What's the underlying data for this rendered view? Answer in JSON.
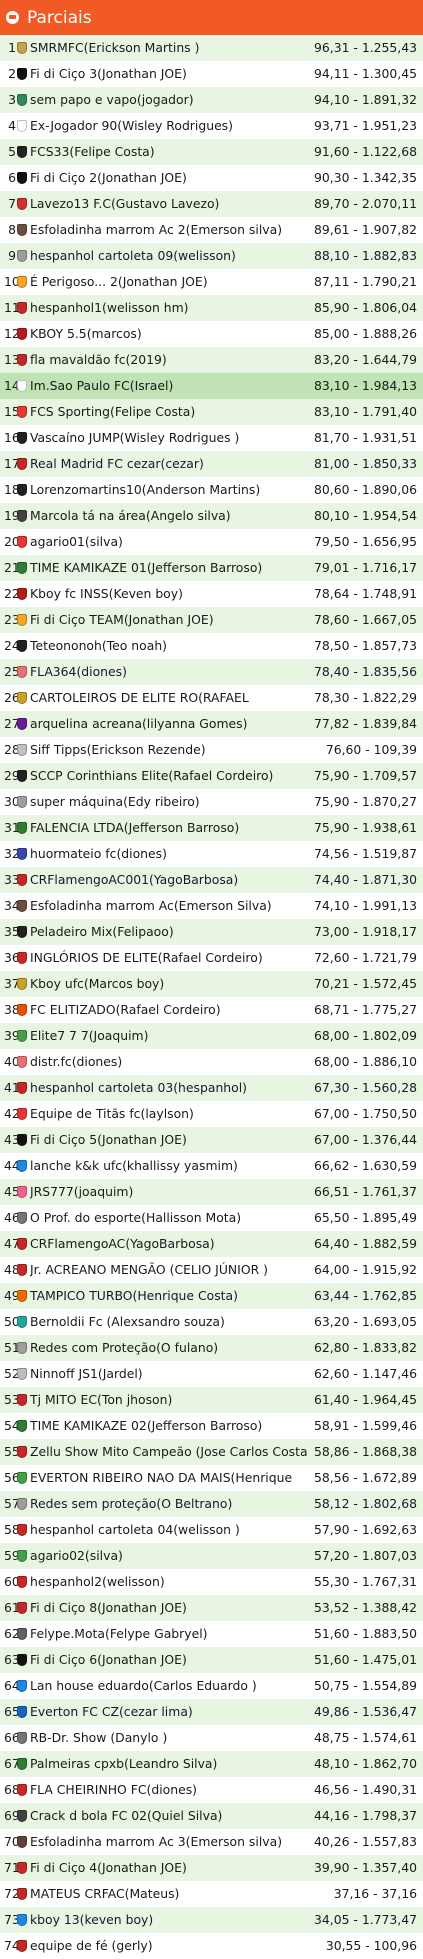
{
  "header": {
    "title": "Parciais",
    "icon": "trophy-icon"
  },
  "rows": [
    {
      "pos": "1",
      "name": "SMRMFC(Erickson Martins )",
      "score": "96,31 - 1.255,43",
      "color": "#c7a14b"
    },
    {
      "pos": "2",
      "name": "Fi di Ciço 3(Jonathan JOE)",
      "score": "94,11 - 1.300,45",
      "color": "#111111"
    },
    {
      "pos": "3",
      "name": "sem papo e vapo(jogador)",
      "score": "94,10 - 1.891,32",
      "color": "#2e8b57"
    },
    {
      "pos": "4",
      "name": "Ex-Jogador 90(Wisley Rodrigues)",
      "score": "93,71 - 1.951,23",
      "color": "#ffffff"
    },
    {
      "pos": "5",
      "name": "FCS33(Felipe Costa)",
      "score": "91,60 - 1.122,68",
      "color": "#222222"
    },
    {
      "pos": "6",
      "name": "Fi di Ciço 2(Jonathan JOE)",
      "score": "90,30 - 1.342,35",
      "color": "#111111"
    },
    {
      "pos": "7",
      "name": "Lavezo13 F.C(Gustavo Lavezo)",
      "score": "89,70 - 2.070,11",
      "color": "#d32f2f"
    },
    {
      "pos": "8",
      "name": "Esfoladinha marrom Ac 2(Emerson silva)",
      "score": "89,61 - 1.907,82",
      "color": "#6d4c41"
    },
    {
      "pos": "9",
      "name": "hespanhol cartoleta 09(welisson)",
      "score": "88,10 - 1.882,83",
      "color": "#9e9e9e"
    },
    {
      "pos": "10",
      "name": "É Perigoso... 2(Jonathan JOE)",
      "score": "87,11 - 1.790,21",
      "color": "#f5a623"
    },
    {
      "pos": "11",
      "name": "hespanhol1(welisson hm)",
      "score": "85,90 - 1.806,04",
      "color": "#c62828"
    },
    {
      "pos": "12",
      "name": "KBOY 5.5(marcos)",
      "score": "85,00 - 1.888,26",
      "color": "#b71c1c"
    },
    {
      "pos": "13",
      "name": "fla mavaldão fc(2019)",
      "score": "83,20 - 1.644,79",
      "color": "#c62828"
    },
    {
      "pos": "14",
      "name": "Im.Sao Paulo FC(Israel)",
      "score": "83,10 - 1.984,13",
      "color": "#ffffff"
    },
    {
      "pos": "15",
      "name": "FCS Sporting(Felipe Costa)",
      "score": "83,10 - 1.791,40",
      "color": "#e53935"
    },
    {
      "pos": "16",
      "name": "Vascaíno JUMP(Wisley Rodrigues )",
      "score": "81,70 - 1.931,51",
      "color": "#212121"
    },
    {
      "pos": "17",
      "name": "Real Madrid FC cezar(cezar)",
      "score": "81,00 - 1.850,33",
      "color": "#c62828"
    },
    {
      "pos": "18",
      "name": "Lorenzomartins10(Anderson Martins)",
      "score": "80,60 - 1.890,06",
      "color": "#212121"
    },
    {
      "pos": "19",
      "name": "Marcola tá na área(Angelo silva)",
      "score": "80,10 - 1.954,54",
      "color": "#424242"
    },
    {
      "pos": "20",
      "name": "agario01(silva)",
      "score": "79,50 - 1.656,95",
      "color": "#e53935"
    },
    {
      "pos": "21",
      "name": "TIME KAMIKAZE 01(Jefferson Barroso)",
      "score": "79,01 - 1.716,17",
      "color": "#2e7d32"
    },
    {
      "pos": "22",
      "name": "Kboy fc INSS(Keven boy)",
      "score": "78,64 - 1.748,91",
      "color": "#b71c1c"
    },
    {
      "pos": "23",
      "name": "Fi di Ciço TEAM(Jonathan JOE)",
      "score": "78,60 - 1.667,05",
      "color": "#f5a623"
    },
    {
      "pos": "24",
      "name": "Teteononoh(Teo noah)",
      "score": "78,50 - 1.857,73",
      "color": "#212121"
    },
    {
      "pos": "25",
      "name": "FLA364(diones)",
      "score": "78,40 - 1.835,56",
      "color": "#e57373"
    },
    {
      "pos": "26",
      "name": "CARTOLEIROS DE ELITE RO(RAFAEL",
      "score": "78,30 - 1.822,29",
      "color": "#c9a227"
    },
    {
      "pos": "27",
      "name": "arquelina acreana(lilyanna Gomes)",
      "score": "77,82 - 1.839,84",
      "color": "#6a1b9a"
    },
    {
      "pos": "28",
      "name": "Siff Tipps(Erickson Rezende)",
      "score": "76,60 - 109,39",
      "color": "#c0c0c0"
    },
    {
      "pos": "29",
      "name": "SCCP Corinthians Elite(Rafael Cordeiro)",
      "score": "75,90 - 1.709,57",
      "color": "#212121"
    },
    {
      "pos": "30",
      "name": "super máquina(Edy ribeiro)",
      "score": "75,90 - 1.870,27",
      "color": "#9e9e9e"
    },
    {
      "pos": "31",
      "name": "FALENCIA LTDA(Jefferson Barroso)",
      "score": "75,90 - 1.938,61",
      "color": "#2e7d32"
    },
    {
      "pos": "32",
      "name": "huormateio fc(diones)",
      "score": "74,56 - 1.519,87",
      "color": "#3949ab"
    },
    {
      "pos": "33",
      "name": "CRFlamengoAC001(YagoBarbosa)",
      "score": "74,40 - 1.871,30",
      "color": "#c62828"
    },
    {
      "pos": "34",
      "name": "Esfoladinha marrom Ac(Emerson Silva)",
      "score": "74,10 - 1.991,13",
      "color": "#6d4c41"
    },
    {
      "pos": "35",
      "name": "Peladeiro Mix(Felipaoo)",
      "score": "73,00 - 1.918,17",
      "color": "#212121"
    },
    {
      "pos": "36",
      "name": "INGLÓRIOS DE ELITE(Rafael Cordeiro)",
      "score": "72,60 - 1.721,79",
      "color": "#c62828"
    },
    {
      "pos": "37",
      "name": "Kboy ufc(Marcos boy)",
      "score": "70,21 - 1.572,45",
      "color": "#c9a227"
    },
    {
      "pos": "38",
      "name": "FC ELITIZADO(Rafael Cordeiro)",
      "score": "68,71 - 1.775,27",
      "color": "#e65100"
    },
    {
      "pos": "39",
      "name": "Elite7 7 7(Joaquim)",
      "score": "68,00 - 1.802,09",
      "color": "#43a047"
    },
    {
      "pos": "40",
      "name": "distr.fc(diones)",
      "score": "68,00 - 1.886,10",
      "color": "#e57373"
    },
    {
      "pos": "41",
      "name": "hespanhol cartoleta 03(hespanhol)",
      "score": "67,30 - 1.560,28",
      "color": "#c62828"
    },
    {
      "pos": "42",
      "name": "Equipe de Titãs fc(laylson)",
      "score": "67,00 - 1.750,50",
      "color": "#e53935"
    },
    {
      "pos": "43",
      "name": "Fi di Ciço 5(Jonathan JOE)",
      "score": "67,00 - 1.376,44",
      "color": "#111111"
    },
    {
      "pos": "44",
      "name": "lanche k&k ufc(khallissy yasmim)",
      "score": "66,62 - 1.630,59",
      "color": "#1e88e5"
    },
    {
      "pos": "45",
      "name": "JRS777(joaquim)",
      "score": "66,51 - 1.761,37",
      "color": "#f06292"
    },
    {
      "pos": "46",
      "name": "O  Prof. do esporte(Hallisson Mota)",
      "score": "65,50 - 1.895,49",
      "color": "#757575"
    },
    {
      "pos": "47",
      "name": "CRFlamengoAC(YagoBarbosa)",
      "score": "64,40 - 1.882,59",
      "color": "#c62828"
    },
    {
      "pos": "48",
      "name": "Jr. ACREANO MENGÃO (CELIO JÚNIOR )",
      "score": "64,00 - 1.915,92",
      "color": "#c62828"
    },
    {
      "pos": "49",
      "name": "TAMPICO TURBO(Henrique Costa)",
      "score": "63,44 - 1.762,85",
      "color": "#ef6c00"
    },
    {
      "pos": "50",
      "name": "Bernoldii Fc (Alexsandro souza)",
      "score": "63,20 - 1.693,05",
      "color": "#26a69a"
    },
    {
      "pos": "51",
      "name": "Redes com Proteção(O fulano)",
      "score": "62,80 - 1.833,82",
      "color": "#9e9e9e"
    },
    {
      "pos": "52",
      "name": "Ninnoff JS1(Jardel)",
      "score": "62,60 - 1.147,46",
      "color": "#bdbdbd"
    },
    {
      "pos": "53",
      "name": "Tj MITO EC(Ton jhoson)",
      "score": "61,40 - 1.964,45",
      "color": "#c62828"
    },
    {
      "pos": "54",
      "name": "TIME KAMIKAZE 02(Jefferson Barroso)",
      "score": "58,91 - 1.599,46",
      "color": "#2e7d32"
    },
    {
      "pos": "55",
      "name": "Zellu Show Mito Campeão (Jose Carlos Costa)",
      "score": "58,86 - 1.868,38",
      "color": "#c62828"
    },
    {
      "pos": "56",
      "name": "EVERTON RIBEIRO NAO DA MAIS(Henrique",
      "score": "58,56 - 1.672,89",
      "color": "#43a047"
    },
    {
      "pos": "57",
      "name": "Redes sem proteção(O Beltrano)",
      "score": "58,12 - 1.802,68",
      "color": "#9e9e9e"
    },
    {
      "pos": "58",
      "name": "hespanhol cartoleta 04(welisson )",
      "score": "57,90 - 1.692,63",
      "color": "#c62828"
    },
    {
      "pos": "59",
      "name": "agario02(silva)",
      "score": "57,20 - 1.807,03",
      "color": "#43a047"
    },
    {
      "pos": "60",
      "name": "hespanhol2(welisson)",
      "score": "55,30 - 1.767,31",
      "color": "#c62828"
    },
    {
      "pos": "61",
      "name": "Fi di Ciço 8(Jonathan JOE)",
      "score": "53,52 - 1.388,42",
      "color": "#c62828"
    },
    {
      "pos": "62",
      "name": "Felype.Mota(Felype Gabryel)",
      "score": "51,60 - 1.883,50",
      "color": "#616161"
    },
    {
      "pos": "63",
      "name": "Fi di Ciço 6(Jonathan JOE)",
      "score": "51,60 - 1.475,01",
      "color": "#111111"
    },
    {
      "pos": "64",
      "name": "Lan house eduardo(Carlos Eduardo )",
      "score": "50,75 - 1.554,89",
      "color": "#1e88e5"
    },
    {
      "pos": "65",
      "name": "Everton FC CZ(cezar lima)",
      "score": "49,86 - 1.536,47",
      "color": "#1565c0"
    },
    {
      "pos": "66",
      "name": "RB-Dr. Show (Danylo )",
      "score": "48,75 - 1.574,61",
      "color": "#757575"
    },
    {
      "pos": "67",
      "name": "Palmeiras cpxb(Leandro Silva)",
      "score": "48,10 - 1.862,70",
      "color": "#2e7d32"
    },
    {
      "pos": "68",
      "name": "FLA CHEIRINHO FC(diones)",
      "score": "46,56 - 1.490,31",
      "color": "#c62828"
    },
    {
      "pos": "69",
      "name": "Crack d bola FC 02(Quiel Silva)",
      "score": "44,16 - 1.798,37",
      "color": "#424242"
    },
    {
      "pos": "70",
      "name": "Esfoladinha marrom Ac 3(Emerson silva)",
      "score": "40,26 - 1.557,83",
      "color": "#5d4037"
    },
    {
      "pos": "71",
      "name": "Fi di Ciço 4(Jonathan JOE)",
      "score": "39,90 - 1.357,40",
      "color": "#c62828"
    },
    {
      "pos": "72",
      "name": "MATEUS CRFAC(Mateus)",
      "score": "37,16 - 37,16",
      "color": "#c62828"
    },
    {
      "pos": "73",
      "name": "kboy 13(keven boy)",
      "score": "34,05 - 1.773,47",
      "color": "#1e88e5"
    },
    {
      "pos": "74",
      "name": "equipe de fé (gerly)",
      "score": "30,55 - 100,96",
      "color": "#c62828"
    }
  ]
}
